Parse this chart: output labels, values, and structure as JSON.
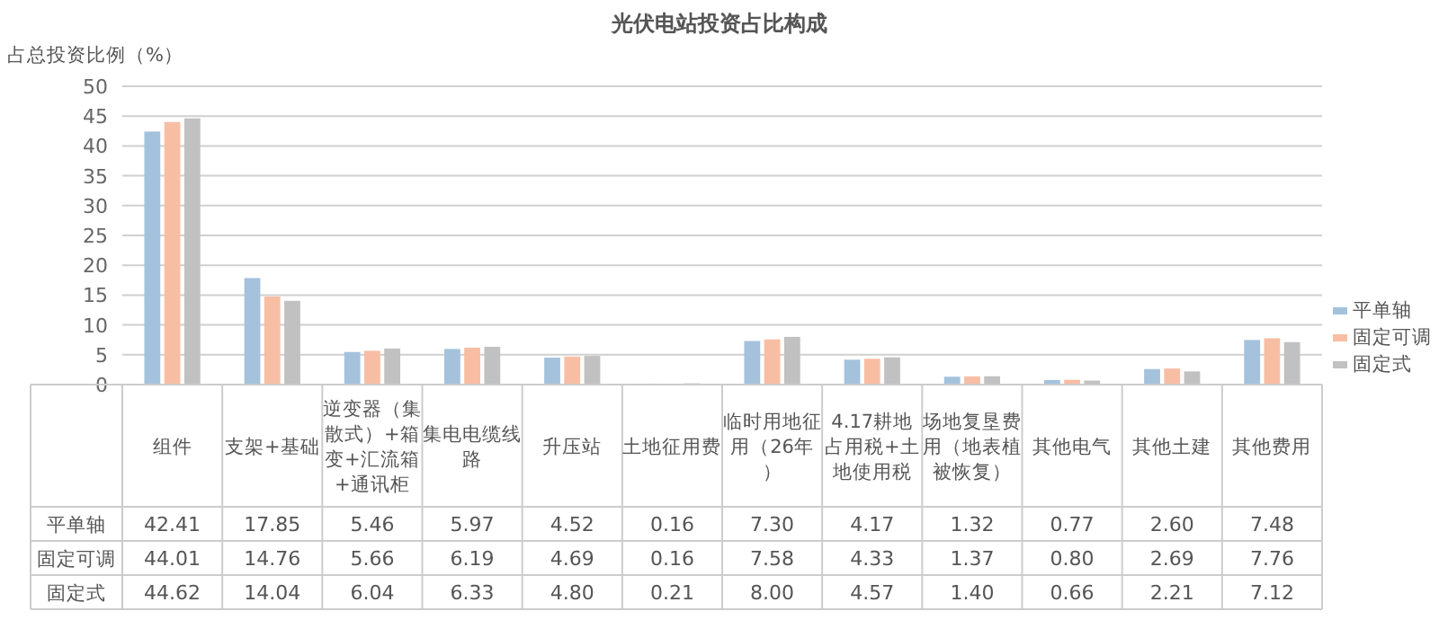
{
  "chart_data": {
    "type": "bar",
    "title": "光伏电站投资占比构成",
    "ylabel": "占总投资比例（%）",
    "categories": [
      "组件",
      "支架+基础",
      "逆变器（集散式）+箱变+汇流箱+通讯柜",
      "集电电缆线路",
      "升压站",
      "土地征用费",
      "临时用地征用（26年）",
      "4.17耕地占用税+土地使用税",
      "场地复垦费用（地表植被恢复）",
      "其他电气",
      "其他土建",
      "其他费用"
    ],
    "series": [
      {
        "name": "平单轴",
        "color": "#a4c2dc",
        "values": [
          42.41,
          17.85,
          5.46,
          5.97,
          4.52,
          0.16,
          7.3,
          4.17,
          1.32,
          0.77,
          2.6,
          7.48
        ],
        "value_labels": [
          "42.41",
          "17.85",
          "5.46",
          "5.97",
          "4.52",
          "0.16",
          "7.30",
          "4.17",
          "1.32",
          "0.77",
          "2.60",
          "7.48"
        ]
      },
      {
        "name": "固定可调",
        "color": "#f8bea4",
        "values": [
          44.01,
          14.76,
          5.66,
          6.19,
          4.69,
          0.16,
          7.58,
          4.33,
          1.37,
          0.8,
          2.69,
          7.76
        ],
        "value_labels": [
          "44.01",
          "14.76",
          "5.66",
          "6.19",
          "4.69",
          "0.16",
          "7.58",
          "4.33",
          "1.37",
          "0.80",
          "2.69",
          "7.76"
        ]
      },
      {
        "name": "固定式",
        "color": "#c1c1c1",
        "values": [
          44.62,
          14.04,
          6.04,
          6.33,
          4.8,
          0.21,
          8.0,
          4.57,
          1.4,
          0.66,
          2.21,
          7.12
        ],
        "value_labels": [
          "44.62",
          "14.04",
          "6.04",
          "6.33",
          "4.80",
          "0.21",
          "8.00",
          "4.57",
          "1.40",
          "0.66",
          "2.21",
          "7.12"
        ]
      }
    ],
    "ylim": [
      0,
      50
    ],
    "yticks": [
      0,
      5,
      10,
      15,
      20,
      25,
      30,
      35,
      40,
      45,
      50
    ],
    "grid": "y",
    "legend": "right"
  }
}
